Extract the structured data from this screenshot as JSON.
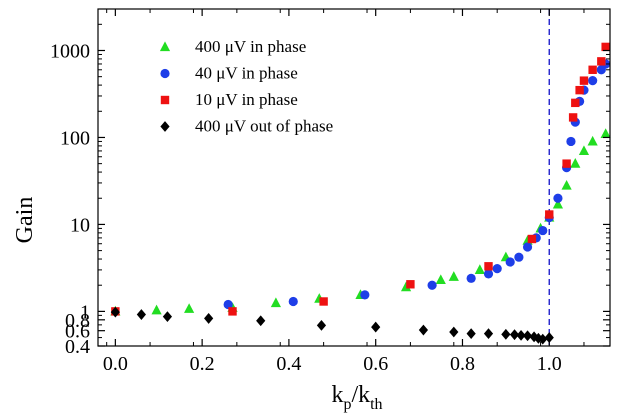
{
  "chart_data": {
    "type": "scatter",
    "title": "",
    "xlabel": "k_p/k_th",
    "xlabel_parts": {
      "main1": "k",
      "sub1": "p",
      "slash": "/",
      "main2": "k",
      "sub2": "th"
    },
    "ylabel": "Gain",
    "x_range": [
      -0.04,
      1.14
    ],
    "y_range": [
      0.4,
      3000
    ],
    "y_scale": "log",
    "x_ticks": [
      0.0,
      0.2,
      0.4,
      0.6,
      0.8,
      1.0
    ],
    "x_tick_labels": [
      "0.0",
      "0.2",
      "0.4",
      "0.6",
      "0.8",
      "1.0"
    ],
    "y_ticks": [
      0.4,
      0.6,
      0.8,
      1,
      10,
      100,
      1000
    ],
    "y_tick_labels": [
      "0.4",
      "0.6",
      "0.8",
      "1",
      "10",
      "100",
      "1000"
    ],
    "grid": false,
    "legend_position": "top-left",
    "reference_line": {
      "x": 1.0,
      "style": "dashed",
      "color": "#2222cc"
    },
    "series": [
      {
        "name": "400 μV in phase",
        "marker": "triangle",
        "color": "#22dd22",
        "points": [
          [
            0.0,
            1.0
          ],
          [
            0.095,
            1.03
          ],
          [
            0.17,
            1.07
          ],
          [
            0.27,
            1.1
          ],
          [
            0.37,
            1.25
          ],
          [
            0.47,
            1.4
          ],
          [
            0.565,
            1.55
          ],
          [
            0.67,
            1.9
          ],
          [
            0.75,
            2.3
          ],
          [
            0.78,
            2.5
          ],
          [
            0.84,
            3.0
          ],
          [
            0.9,
            4.2
          ],
          [
            0.95,
            6.5
          ],
          [
            0.98,
            9
          ],
          [
            1.0,
            12
          ],
          [
            1.02,
            17
          ],
          [
            1.04,
            28
          ],
          [
            1.06,
            50
          ],
          [
            1.08,
            70
          ],
          [
            1.1,
            90
          ],
          [
            1.13,
            110
          ]
        ]
      },
      {
        "name": "40 μV in phase",
        "marker": "circle",
        "color": "#1e3ee8",
        "points": [
          [
            0.26,
            1.2
          ],
          [
            0.41,
            1.3
          ],
          [
            0.575,
            1.55
          ],
          [
            0.73,
            2.0
          ],
          [
            0.82,
            2.4
          ],
          [
            0.86,
            2.7
          ],
          [
            0.88,
            3.1
          ],
          [
            0.91,
            3.7
          ],
          [
            0.93,
            4.2
          ],
          [
            0.95,
            5.5
          ],
          [
            0.97,
            7.0
          ],
          [
            0.985,
            8.5
          ],
          [
            1.0,
            12
          ],
          [
            1.02,
            20
          ],
          [
            1.04,
            45
          ],
          [
            1.05,
            90
          ],
          [
            1.06,
            150
          ],
          [
            1.07,
            260
          ],
          [
            1.08,
            350
          ],
          [
            1.1,
            450
          ],
          [
            1.12,
            600
          ],
          [
            1.13,
            700
          ]
        ]
      },
      {
        "name": "10 μV in phase",
        "marker": "square",
        "color": "#ee1111",
        "points": [
          [
            0.0,
            1.0
          ],
          [
            0.27,
            1.0
          ],
          [
            0.48,
            1.3
          ],
          [
            0.68,
            2.05
          ],
          [
            0.86,
            3.3
          ],
          [
            0.96,
            6.8
          ],
          [
            1.0,
            13
          ],
          [
            1.04,
            50
          ],
          [
            1.055,
            170
          ],
          [
            1.06,
            250
          ],
          [
            1.07,
            350
          ],
          [
            1.08,
            450
          ],
          [
            1.1,
            600
          ],
          [
            1.12,
            750
          ],
          [
            1.13,
            1100
          ]
        ]
      },
      {
        "name": "400 μV out of phase",
        "marker": "diamond",
        "color": "#000000",
        "points": [
          [
            0.0,
            0.98
          ],
          [
            0.06,
            0.92
          ],
          [
            0.12,
            0.87
          ],
          [
            0.215,
            0.83
          ],
          [
            0.335,
            0.78
          ],
          [
            0.475,
            0.69
          ],
          [
            0.6,
            0.66
          ],
          [
            0.71,
            0.61
          ],
          [
            0.78,
            0.58
          ],
          [
            0.82,
            0.555
          ],
          [
            0.86,
            0.555
          ],
          [
            0.9,
            0.545
          ],
          [
            0.92,
            0.54
          ],
          [
            0.935,
            0.53
          ],
          [
            0.95,
            0.525
          ],
          [
            0.965,
            0.51
          ],
          [
            0.975,
            0.49
          ],
          [
            0.985,
            0.48
          ],
          [
            1.0,
            0.5
          ]
        ]
      }
    ]
  }
}
